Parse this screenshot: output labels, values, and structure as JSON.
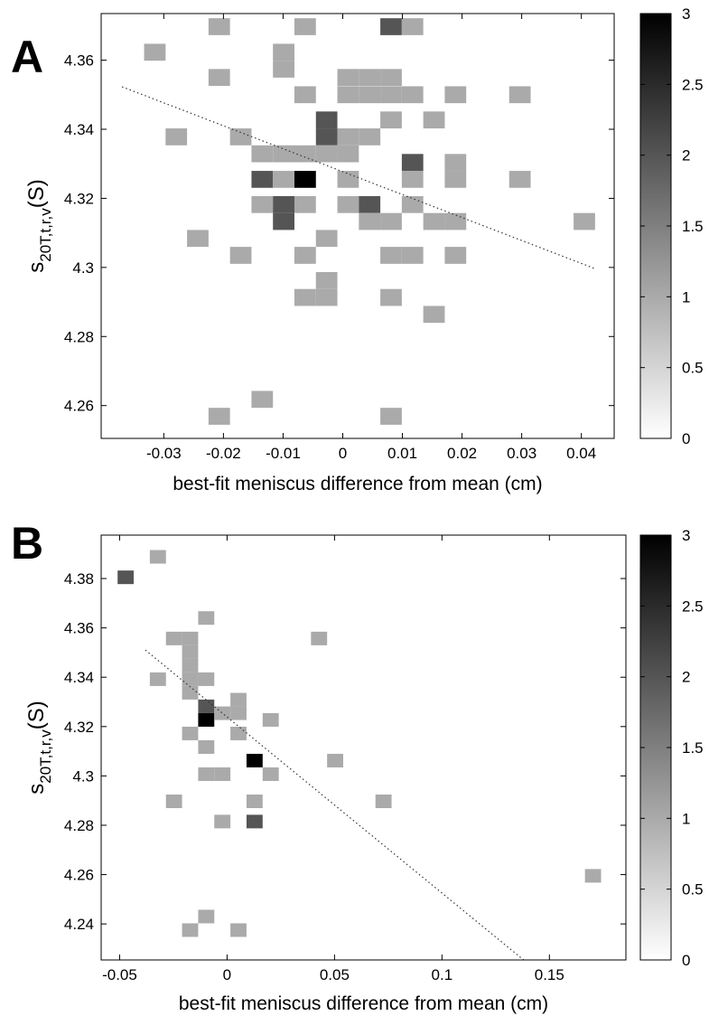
{
  "chart_data": [
    {
      "panel": "A",
      "type": "heatmap",
      "xlabel": "best-fit meniscus difference from mean (cm)",
      "ylabel": {
        "main": "s",
        "sub": "20T,t,r,v",
        "unit": "(S)"
      },
      "xlim": [
        -0.0405,
        0.0455
      ],
      "ylim": [
        4.2505,
        4.3735
      ],
      "xticks": [
        -0.03,
        -0.02,
        -0.01,
        0,
        0.01,
        0.02,
        0.03,
        0.04
      ],
      "xtick_labels": [
        "-0.03",
        "-0.02",
        "-0.01",
        "0",
        "0.01",
        "0.02",
        "0.03",
        "0.04"
      ],
      "yticks": [
        4.26,
        4.28,
        4.3,
        4.32,
        4.34,
        4.36
      ],
      "ytick_labels": [
        "4.26",
        "4.28",
        "4.3",
        "4.32",
        "4.34",
        "4.36"
      ],
      "bin_width": 0.0036,
      "bin_height": 0.0049,
      "cells": [
        {
          "x": -0.0315,
          "y": 4.3623,
          "count": 1
        },
        {
          "x": -0.0207,
          "y": 4.3697,
          "count": 1
        },
        {
          "x": -0.0207,
          "y": 4.355,
          "count": 1
        },
        {
          "x": -0.0099,
          "y": 4.3623,
          "count": 1
        },
        {
          "x": -0.0099,
          "y": 4.3574,
          "count": 1
        },
        {
          "x": -0.0063,
          "y": 4.3697,
          "count": 1
        },
        {
          "x": 0.0081,
          "y": 4.3697,
          "count": 2
        },
        {
          "x": 0.0117,
          "y": 4.3697,
          "count": 1
        },
        {
          "x": -0.0063,
          "y": 4.35,
          "count": 1
        },
        {
          "x": -0.0027,
          "y": 4.3427,
          "count": 2
        },
        {
          "x": -0.0027,
          "y": 4.3378,
          "count": 2
        },
        {
          "x": 0.0009,
          "y": 4.355,
          "count": 1
        },
        {
          "x": 0.0009,
          "y": 4.35,
          "count": 1
        },
        {
          "x": 0.0045,
          "y": 4.355,
          "count": 1
        },
        {
          "x": 0.0045,
          "y": 4.35,
          "count": 1
        },
        {
          "x": 0.0081,
          "y": 4.355,
          "count": 1
        },
        {
          "x": 0.0081,
          "y": 4.35,
          "count": 1
        },
        {
          "x": 0.0117,
          "y": 4.35,
          "count": 1
        },
        {
          "x": 0.0081,
          "y": 4.3427,
          "count": 1
        },
        {
          "x": 0.0189,
          "y": 4.35,
          "count": 1
        },
        {
          "x": 0.0297,
          "y": 4.35,
          "count": 1
        },
        {
          "x": 0.0153,
          "y": 4.3427,
          "count": 1
        },
        {
          "x": 0.0009,
          "y": 4.3378,
          "count": 1
        },
        {
          "x": 0.0045,
          "y": 4.3378,
          "count": 1
        },
        {
          "x": -0.0279,
          "y": 4.3378,
          "count": 1
        },
        {
          "x": -0.0171,
          "y": 4.3378,
          "count": 1
        },
        {
          "x": -0.0135,
          "y": 4.3329,
          "count": 1
        },
        {
          "x": -0.0099,
          "y": 4.3329,
          "count": 1
        },
        {
          "x": -0.0063,
          "y": 4.3329,
          "count": 1
        },
        {
          "x": -0.0027,
          "y": 4.3329,
          "count": 1
        },
        {
          "x": 0.0009,
          "y": 4.3329,
          "count": 1
        },
        {
          "x": -0.0135,
          "y": 4.3255,
          "count": 2
        },
        {
          "x": -0.0099,
          "y": 4.3255,
          "count": 1
        },
        {
          "x": -0.0063,
          "y": 4.3255,
          "count": 3
        },
        {
          "x": 0.0009,
          "y": 4.3255,
          "count": 1
        },
        {
          "x": 0.0117,
          "y": 4.3304,
          "count": 2
        },
        {
          "x": 0.0117,
          "y": 4.3255,
          "count": 1
        },
        {
          "x": 0.0189,
          "y": 4.3304,
          "count": 1
        },
        {
          "x": 0.0189,
          "y": 4.3255,
          "count": 1
        },
        {
          "x": 0.0297,
          "y": 4.3255,
          "count": 1
        },
        {
          "x": -0.0135,
          "y": 4.3182,
          "count": 1
        },
        {
          "x": -0.0099,
          "y": 4.3182,
          "count": 2
        },
        {
          "x": -0.0099,
          "y": 4.3133,
          "count": 2
        },
        {
          "x": -0.0063,
          "y": 4.3182,
          "count": 1
        },
        {
          "x": 0.0009,
          "y": 4.3182,
          "count": 1
        },
        {
          "x": 0.0045,
          "y": 4.3182,
          "count": 2
        },
        {
          "x": 0.0117,
          "y": 4.3182,
          "count": 1
        },
        {
          "x": 0.0045,
          "y": 4.3133,
          "count": 1
        },
        {
          "x": 0.0081,
          "y": 4.3133,
          "count": 1
        },
        {
          "x": 0.0153,
          "y": 4.3133,
          "count": 1
        },
        {
          "x": 0.0189,
          "y": 4.3133,
          "count": 1
        },
        {
          "x": 0.0405,
          "y": 4.3133,
          "count": 1
        },
        {
          "x": -0.0243,
          "y": 4.3084,
          "count": 1
        },
        {
          "x": -0.0027,
          "y": 4.3084,
          "count": 1
        },
        {
          "x": -0.0171,
          "y": 4.3035,
          "count": 1
        },
        {
          "x": -0.0063,
          "y": 4.3035,
          "count": 1
        },
        {
          "x": 0.0081,
          "y": 4.3035,
          "count": 1
        },
        {
          "x": 0.0117,
          "y": 4.3035,
          "count": 1
        },
        {
          "x": 0.0189,
          "y": 4.3035,
          "count": 1
        },
        {
          "x": -0.0027,
          "y": 4.2962,
          "count": 1
        },
        {
          "x": -0.0063,
          "y": 4.2913,
          "count": 1
        },
        {
          "x": -0.0027,
          "y": 4.2913,
          "count": 1
        },
        {
          "x": 0.0081,
          "y": 4.2913,
          "count": 1
        },
        {
          "x": 0.0153,
          "y": 4.2864,
          "count": 1
        },
        {
          "x": -0.0135,
          "y": 4.2618,
          "count": 1
        },
        {
          "x": -0.0207,
          "y": 4.2569,
          "count": 1
        },
        {
          "x": 0.0081,
          "y": 4.2569,
          "count": 1
        }
      ],
      "fit_line": {
        "x": [
          -0.037,
          0.0425
        ],
        "y": [
          4.3523,
          4.2995
        ]
      },
      "colorbar": {
        "range": [
          0,
          3
        ],
        "ticks": [
          0,
          0.5,
          1,
          1.5,
          2,
          2.5,
          3
        ],
        "tick_labels": [
          "0",
          "0.5",
          "1",
          "1.5",
          "2",
          "2.5",
          "3"
        ]
      }
    },
    {
      "panel": "B",
      "type": "heatmap",
      "xlabel": "best-fit meniscus difference from mean (cm)",
      "ylabel": {
        "main": "s",
        "sub": "20T,t,r,v",
        "unit": "(S)"
      },
      "xlim": [
        -0.0586,
        0.1856
      ],
      "ylim": [
        4.2254,
        4.3976
      ],
      "xticks": [
        -0.05,
        0,
        0.05,
        0.1,
        0.15
      ],
      "xtick_labels": [
        "-0.05",
        "0",
        "0.05",
        "0.1",
        "0.15"
      ],
      "yticks": [
        4.24,
        4.26,
        4.28,
        4.3,
        4.32,
        4.34,
        4.36,
        4.38
      ],
      "ytick_labels": [
        "4.24",
        "4.26",
        "4.28",
        "4.3",
        "4.32",
        "4.34",
        "4.36",
        "4.38"
      ],
      "bin_width": 0.0075,
      "bin_height": 0.0055,
      "cells": [
        {
          "x": -0.0472,
          "y": 4.3805,
          "count": 2
        },
        {
          "x": -0.0322,
          "y": 4.3888,
          "count": 1
        },
        {
          "x": -0.0097,
          "y": 4.364,
          "count": 1
        },
        {
          "x": -0.0247,
          "y": 4.3557,
          "count": 1
        },
        {
          "x": -0.0172,
          "y": 4.3557,
          "count": 1
        },
        {
          "x": -0.0172,
          "y": 4.3502,
          "count": 1
        },
        {
          "x": 0.0428,
          "y": 4.3557,
          "count": 1
        },
        {
          "x": -0.0322,
          "y": 4.3392,
          "count": 1
        },
        {
          "x": -0.0172,
          "y": 4.3447,
          "count": 1
        },
        {
          "x": -0.0172,
          "y": 4.3392,
          "count": 1
        },
        {
          "x": -0.0097,
          "y": 4.3392,
          "count": 1
        },
        {
          "x": -0.0172,
          "y": 4.3337,
          "count": 1
        },
        {
          "x": -0.0097,
          "y": 4.3282,
          "count": 2
        },
        {
          "x": -0.0097,
          "y": 4.3227,
          "count": 3
        },
        {
          "x": -0.0022,
          "y": 4.3254,
          "count": 1
        },
        {
          "x": 0.0053,
          "y": 4.3309,
          "count": 1
        },
        {
          "x": 0.0053,
          "y": 4.3254,
          "count": 1
        },
        {
          "x": 0.0203,
          "y": 4.3227,
          "count": 1
        },
        {
          "x": -0.0172,
          "y": 4.3172,
          "count": 1
        },
        {
          "x": -0.0097,
          "y": 4.3117,
          "count": 1
        },
        {
          "x": 0.0053,
          "y": 4.3172,
          "count": 1
        },
        {
          "x": 0.0128,
          "y": 4.3062,
          "count": 3
        },
        {
          "x": 0.0503,
          "y": 4.3062,
          "count": 1
        },
        {
          "x": -0.0097,
          "y": 4.3007,
          "count": 1
        },
        {
          "x": -0.0022,
          "y": 4.3007,
          "count": 1
        },
        {
          "x": 0.0203,
          "y": 4.3007,
          "count": 1
        },
        {
          "x": -0.0247,
          "y": 4.2897,
          "count": 1
        },
        {
          "x": 0.0128,
          "y": 4.2897,
          "count": 1
        },
        {
          "x": 0.0728,
          "y": 4.2897,
          "count": 1
        },
        {
          "x": -0.0022,
          "y": 4.2815,
          "count": 1
        },
        {
          "x": 0.0128,
          "y": 4.2815,
          "count": 2
        },
        {
          "x": 0.1703,
          "y": 4.2595,
          "count": 1
        },
        {
          "x": -0.0097,
          "y": 4.243,
          "count": 1
        },
        {
          "x": -0.0172,
          "y": 4.2375,
          "count": 1
        },
        {
          "x": 0.0053,
          "y": 4.2375,
          "count": 1
        }
      ],
      "fit_line": {
        "x": [
          -0.038,
          0.138
        ],
        "y": [
          4.351,
          4.2254
        ]
      },
      "colorbar": {
        "range": [
          0,
          3
        ],
        "ticks": [
          0,
          0.5,
          1,
          1.5,
          2,
          2.5,
          3
        ],
        "tick_labels": [
          "0",
          "0.5",
          "1",
          "1.5",
          "2",
          "2.5",
          "3"
        ]
      }
    }
  ]
}
